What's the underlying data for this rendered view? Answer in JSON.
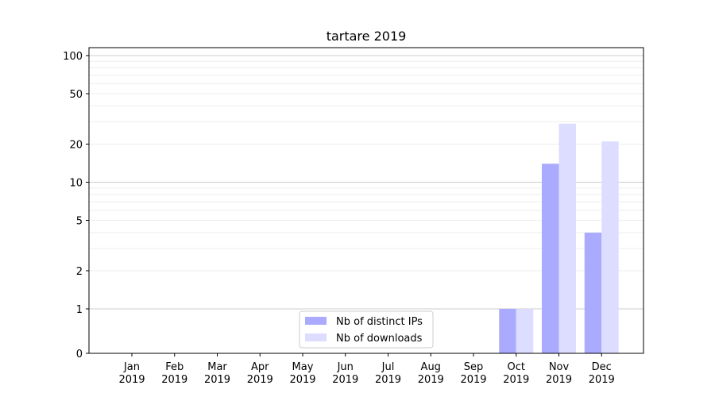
{
  "chart_data": {
    "type": "bar",
    "title": "tartare 2019",
    "xlabel": "",
    "ylabel": "",
    "yscale": "symlog",
    "ylim": [
      0,
      100
    ],
    "grid": true,
    "legend_position": "bottom-center",
    "categories": [
      [
        "Jan",
        "2019"
      ],
      [
        "Feb",
        "2019"
      ],
      [
        "Mar",
        "2019"
      ],
      [
        "Apr",
        "2019"
      ],
      [
        "May",
        "2019"
      ],
      [
        "Jun",
        "2019"
      ],
      [
        "Jul",
        "2019"
      ],
      [
        "Aug",
        "2019"
      ],
      [
        "Sep",
        "2019"
      ],
      [
        "Oct",
        "2019"
      ],
      [
        "Nov",
        "2019"
      ],
      [
        "Dec",
        "2019"
      ]
    ],
    "y_ticks": [
      "0",
      "1",
      "2",
      "5",
      "10",
      "20",
      "50",
      "100"
    ],
    "series": [
      {
        "name": "Nb of distinct IPs",
        "color": "#aaaaff",
        "values": [
          0,
          0,
          0,
          0,
          0,
          0,
          0,
          0,
          0,
          1,
          14,
          4
        ]
      },
      {
        "name": "Nb of downloads",
        "color": "#ddddff",
        "values": [
          0,
          0,
          0,
          0,
          0,
          0,
          0,
          0,
          0,
          1,
          29,
          21
        ]
      }
    ]
  }
}
